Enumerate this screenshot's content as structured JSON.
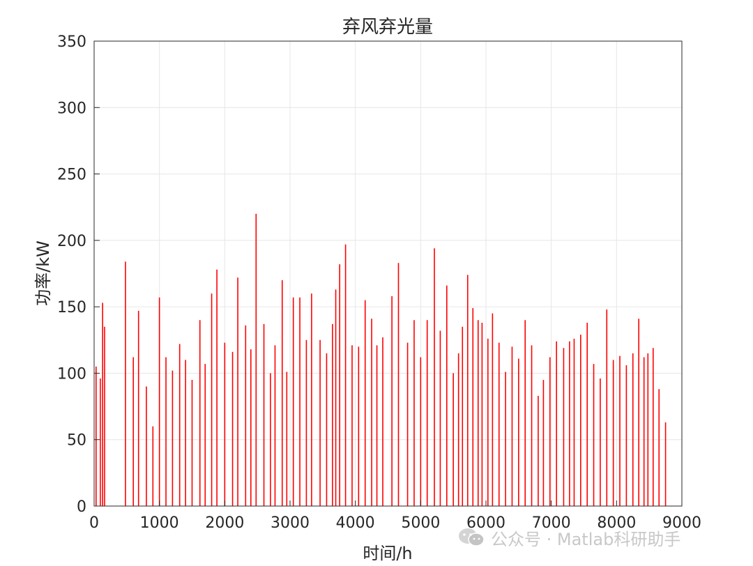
{
  "chart_data": {
    "type": "bar",
    "title": "弃风弃光量",
    "xlabel": "时间/h",
    "ylabel": "功率/kW",
    "xlim": [
      0,
      9000
    ],
    "ylim": [
      0,
      350
    ],
    "xticks": [
      0,
      1000,
      2000,
      3000,
      4000,
      5000,
      6000,
      7000,
      8000,
      9000
    ],
    "yticks": [
      0,
      50,
      100,
      150,
      200,
      250,
      300,
      350
    ],
    "grid": true,
    "bar_color": "#ff0000",
    "series": [
      {
        "x": [
          30,
          95,
          130,
          160,
          480,
          600,
          680,
          800,
          900,
          1000,
          1100,
          1200,
          1310,
          1400,
          1500,
          1620,
          1700,
          1800,
          1880,
          2000,
          2120,
          2200,
          2320,
          2400,
          2480,
          2600,
          2700,
          2770,
          2880,
          2950,
          3050,
          3150,
          3250,
          3330,
          3460,
          3560,
          3650,
          3700,
          3760,
          3850,
          3950,
          4050,
          4150,
          4250,
          4330,
          4420,
          4560,
          4660,
          4800,
          4900,
          5000,
          5100,
          5210,
          5300,
          5400,
          5500,
          5580,
          5640,
          5720,
          5800,
          5880,
          5940,
          6030,
          6100,
          6200,
          6300,
          6400,
          6500,
          6600,
          6700,
          6800,
          6880,
          6980,
          7080,
          7190,
          7280,
          7350,
          7450,
          7550,
          7650,
          7750,
          7850,
          7950,
          8050,
          8150,
          8250,
          8340,
          8420,
          8480,
          8560,
          8650,
          8750
        ],
        "y": [
          105,
          96,
          153,
          135,
          184,
          112,
          147,
          90,
          60,
          157,
          112,
          102,
          122,
          110,
          95,
          140,
          107,
          160,
          178,
          123,
          116,
          172,
          136,
          118,
          220,
          137,
          100,
          121,
          170,
          101,
          157,
          157,
          125,
          160,
          125,
          115,
          137,
          163,
          182,
          197,
          121,
          120,
          155,
          141,
          121,
          127,
          158,
          183,
          123,
          140,
          112,
          140,
          194,
          132,
          166,
          100,
          115,
          135,
          174,
          149,
          140,
          138,
          126,
          145,
          123,
          101,
          120,
          111,
          140,
          121,
          83,
          95,
          112,
          124,
          119,
          124,
          126,
          129,
          138,
          107,
          96,
          148,
          110,
          113,
          106,
          115,
          141,
          112,
          115,
          119,
          88,
          63
        ]
      }
    ]
  },
  "watermark": {
    "text": "公众号 · Matlab科研助手"
  }
}
